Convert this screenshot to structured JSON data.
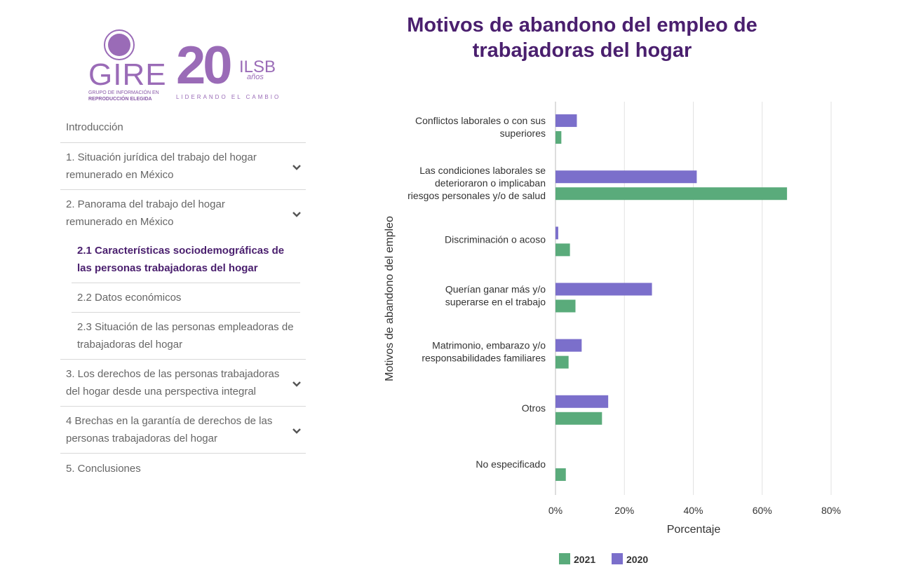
{
  "sidebar": {
    "logos": {
      "gire_text": "GIRE",
      "gire_sub1": "GRUPO DE INFORMACIÓN EN",
      "gire_sub2": "REPRODUCCIÓN ELEGIDA",
      "ilsb_number": "20",
      "ilsb_text": "ILSB",
      "ilsb_anos": "años",
      "ilsb_tagline": "LIDERANDO EL CAMBIO",
      "brand_color": "#9a6bb7"
    },
    "nav": {
      "intro": "Introducción",
      "s1": "1. Situación jurídica del trabajo del hogar remunerado en México",
      "s2": "2. Panorama del trabajo del hogar remunerado en México",
      "s2_1": "2.1 Características sociodemográficas de las personas trabajadoras del hogar",
      "s2_2": "2.2 Datos económicos",
      "s2_3": "2.3 Situación de las personas empleadoras de trabajadoras del hogar",
      "s3": "3. Los derechos de las personas trabajadoras del hogar desde una perspectiva integral",
      "s4": "4 Brechas en la garantía de derechos de las personas trabajadoras del hogar",
      "s5": "5. Conclusiones"
    }
  },
  "chart_data": {
    "type": "bar",
    "orientation": "horizontal",
    "title": "Motivos de abandono del empleo de trabajadoras del hogar",
    "xlabel": "Porcentaje",
    "ylabel": "Motivos de abandono del empleo",
    "xlim": [
      0,
      80
    ],
    "xticks": [
      0,
      20,
      40,
      60,
      80
    ],
    "xtick_labels": [
      "0%",
      "20%",
      "40%",
      "60%",
      "80%"
    ],
    "grid": true,
    "legend_position": "bottom",
    "categories": [
      [
        "Conflictos laborales o con sus",
        "superiores"
      ],
      [
        "Las condiciones laborales se",
        "deterioraron o implicaban",
        "riesgos personales y/o de salud"
      ],
      [
        "Discriminación o acoso"
      ],
      [
        "Querían ganar más y/o",
        "superarse en el trabajo"
      ],
      [
        "Matrimonio, embarazo y/o",
        "responsabilidades familiares"
      ],
      [
        "Otros"
      ],
      [
        "No especificado"
      ]
    ],
    "series": [
      {
        "name": "2020",
        "color": "#7b6fcb",
        "values": [
          6.2,
          41,
          0.8,
          28,
          7.6,
          15.3,
          null
        ]
      },
      {
        "name": "2021",
        "color": "#5aab7b",
        "values": [
          1.7,
          67.2,
          4.2,
          5.8,
          3.8,
          13.5,
          3
        ]
      }
    ],
    "legend_order": [
      "2021",
      "2020"
    ]
  }
}
